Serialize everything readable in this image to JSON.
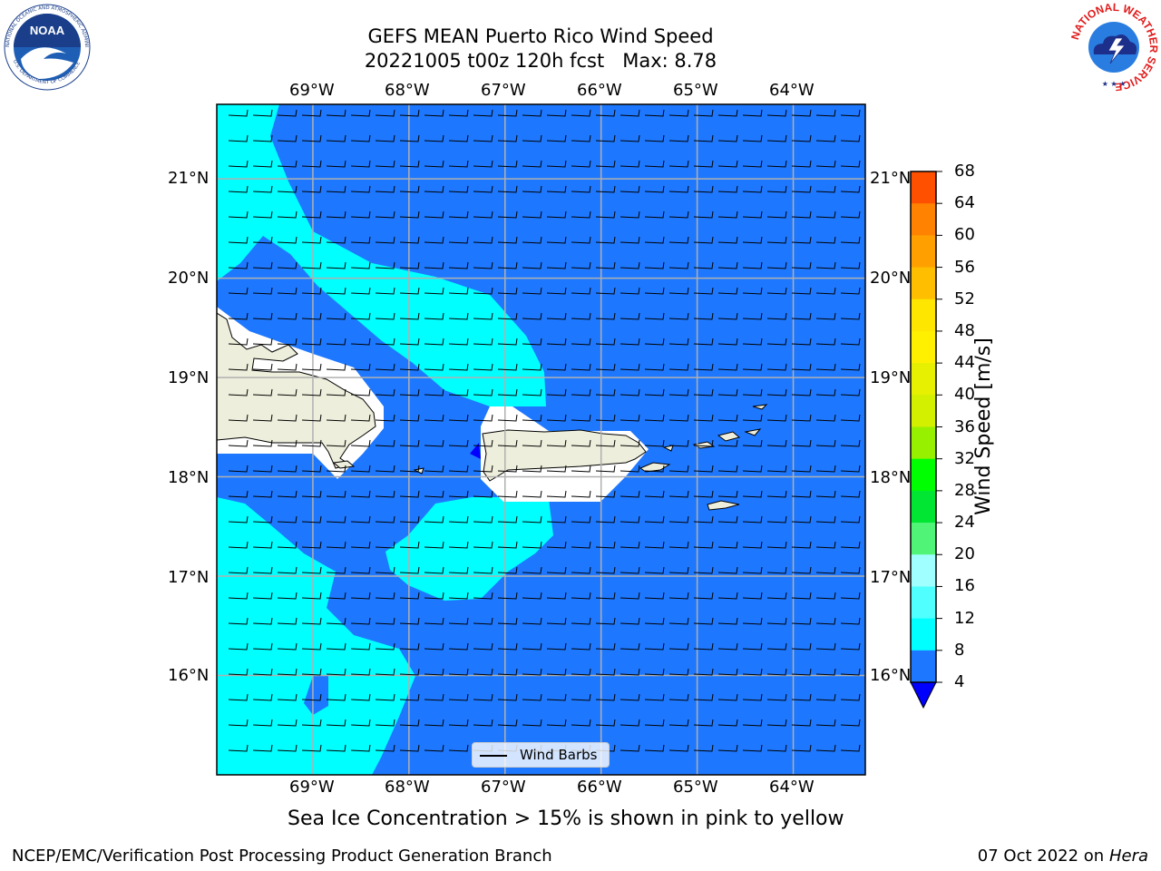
{
  "title": {
    "line1": "GEFS MEAN Puerto Rico Wind Speed",
    "line2": "20221005 t00z 120h fcst   Max: 8.78"
  },
  "map": {
    "lon_ticks": [
      "69°W",
      "68°W",
      "67°W",
      "66°W",
      "65°W",
      "64°W"
    ],
    "lat_ticks": [
      "21°N",
      "20°N",
      "19°N",
      "18°N",
      "17°N",
      "16°N"
    ],
    "lon_range": [
      -70.0,
      -63.25
    ],
    "lat_range": [
      15.0,
      21.75
    ],
    "fill_colors": {
      "band_4_8": "#1e78ff",
      "band_8_12": "#00ffff",
      "land": "#eeeedc",
      "coast": "#000000",
      "grid": "#b0b0b0"
    },
    "legend_label": "Wind Barbs"
  },
  "colorbar": {
    "label": "Wind Speed [m/s]",
    "ticks": [
      "68",
      "64",
      "60",
      "56",
      "52",
      "48",
      "44",
      "40",
      "36",
      "32",
      "28",
      "24",
      "20",
      "16",
      "12",
      "8",
      "4"
    ],
    "colors": [
      "#ff0000",
      "#ff2800",
      "#ff5000",
      "#ff8200",
      "#ffa000",
      "#ffbe00",
      "#ffe600",
      "#fff000",
      "#e6f000",
      "#d2f000",
      "#96f000",
      "#00ff00",
      "#00e632",
      "#50f578",
      "#a0ffff",
      "#50ffff",
      "#00ffff",
      "#1e78ff"
    ],
    "extend_color": "#0000ff"
  },
  "note": "Sea Ice Concentration > 15% is shown in pink to yellow",
  "footer": {
    "left": "NCEP/EMC/Verification Post Processing Product Generation Branch",
    "right_date": "07 Oct 2022 on ",
    "right_machine": "Hera"
  },
  "logos": {
    "noaa_text": "NOAA",
    "noaa_ring": "NATIONAL OCEANIC AND ATMOSPHERIC ADMINISTRATION",
    "noaa_ring_bottom": "U.S. DEPARTMENT OF COMMERCE",
    "nws_ring": "NATIONAL WEATHER SERVICE"
  }
}
